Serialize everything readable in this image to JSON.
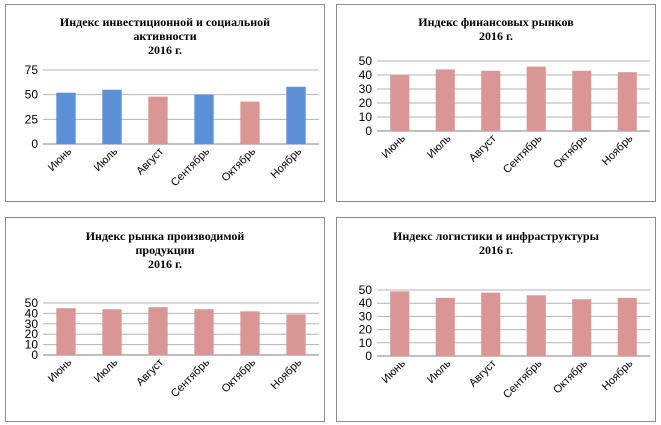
{
  "charts": [
    {
      "title": "Индекс инвестиционной  и социальной\nактивности\n2016 г.",
      "chart_data": {
        "type": "bar",
        "categories": [
          "Июнь",
          "Июль",
          "Август",
          "Сентябрь",
          "Октябрь",
          "Ноябрь"
        ],
        "values": [
          52,
          55,
          48,
          50,
          43,
          58
        ],
        "bar_colors": [
          "#5b8fd6",
          "#5b8fd6",
          "#d99694",
          "#5b8fd6",
          "#d99694",
          "#5b8fd6"
        ],
        "yticks": [
          0,
          25,
          50,
          75
        ],
        "ylim": [
          0,
          75
        ],
        "grid": true
      }
    },
    {
      "title": "Индекс финансовых  рынков\n2016 г.",
      "chart_data": {
        "type": "bar",
        "categories": [
          "Июнь",
          "Июль",
          "Август",
          "Сентябрь",
          "Октябрь",
          "Ноябрь"
        ],
        "values": [
          40,
          44,
          43,
          46,
          43,
          42
        ],
        "bar_colors": [
          "#d99694",
          "#d99694",
          "#d99694",
          "#d99694",
          "#d99694",
          "#d99694"
        ],
        "yticks": [
          0,
          10,
          20,
          30,
          40,
          50
        ],
        "ylim": [
          0,
          50
        ],
        "grid": true
      }
    },
    {
      "title": "Индекс рынка  производимой\nпродукции\n2016 г.",
      "chart_data": {
        "type": "bar",
        "categories": [
          "Июнь",
          "Июль",
          "Август",
          "Сентябрь",
          "Октябрь",
          "Ноябрь"
        ],
        "values": [
          45,
          44,
          46,
          44,
          42,
          39
        ],
        "bar_colors": [
          "#d99694",
          "#d99694",
          "#d99694",
          "#d99694",
          "#d99694",
          "#d99694"
        ],
        "yticks": [
          0,
          10,
          20,
          30,
          40,
          50
        ],
        "ylim": [
          0,
          50
        ],
        "grid": true
      }
    },
    {
      "title": "Индекс логистики  и инфраструктуры\n2016 г.",
      "chart_data": {
        "type": "bar",
        "categories": [
          "Июнь",
          "Июль",
          "Август",
          "Сентябрь",
          "Октябрь",
          "Ноябрь"
        ],
        "values": [
          49,
          44,
          48,
          46,
          43,
          44
        ],
        "bar_colors": [
          "#d99694",
          "#d99694",
          "#d99694",
          "#d99694",
          "#d99694",
          "#d99694"
        ],
        "yticks": [
          0,
          10,
          20,
          30,
          40,
          50
        ],
        "ylim": [
          0,
          50
        ],
        "grid": true
      }
    }
  ]
}
